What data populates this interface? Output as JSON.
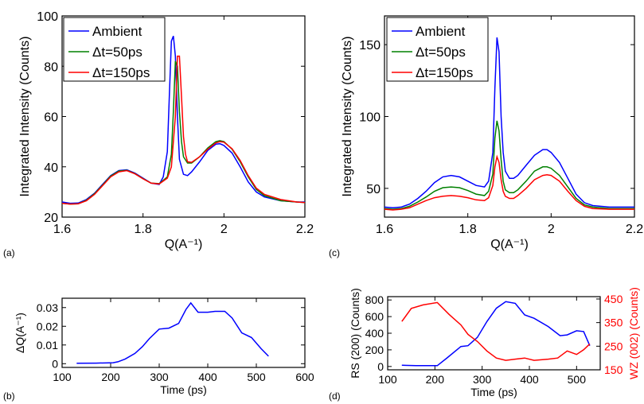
{
  "chart_data": [
    {
      "panel": "(a)",
      "type": "line",
      "xlabel": "Q(A⁻¹)",
      "ylabel": "Integrated Intensity (Counts)",
      "xlim": [
        1.6,
        2.2
      ],
      "ylim": [
        20,
        100
      ],
      "xticks": [
        "1.6",
        "1.8",
        "2",
        "2.2"
      ],
      "yticks": [
        "20",
        "40",
        "60",
        "80",
        "100"
      ],
      "legend_position": "top-left",
      "series": [
        {
          "name": "Ambient",
          "color": "#0000ff",
          "x": [
            1.6,
            1.62,
            1.64,
            1.66,
            1.68,
            1.7,
            1.72,
            1.74,
            1.76,
            1.78,
            1.8,
            1.82,
            1.84,
            1.85,
            1.86,
            1.865,
            1.87,
            1.875,
            1.88,
            1.885,
            1.89,
            1.9,
            1.91,
            1.92,
            1.94,
            1.96,
            1.98,
            1.99,
            2.0,
            2.02,
            2.04,
            2.06,
            2.08,
            2.1,
            2.14,
            2.18,
            2.2
          ],
          "y": [
            26,
            25.5,
            25.6,
            27,
            29.5,
            33,
            36.5,
            38.5,
            38.8,
            37.5,
            35.5,
            33.5,
            33,
            36,
            46,
            68,
            90,
            92,
            84,
            60,
            43,
            37,
            36.5,
            38,
            42,
            46.5,
            49,
            49.2,
            48.5,
            45.5,
            40,
            34,
            30,
            28,
            26.5,
            26,
            26
          ]
        },
        {
          "name": "Δt=50ps",
          "color": "#008000",
          "x": [
            1.6,
            1.62,
            1.64,
            1.66,
            1.68,
            1.7,
            1.72,
            1.74,
            1.76,
            1.78,
            1.8,
            1.82,
            1.84,
            1.86,
            1.87,
            1.875,
            1.88,
            1.885,
            1.89,
            1.895,
            1.9,
            1.91,
            1.92,
            1.94,
            1.96,
            1.98,
            1.99,
            2.0,
            2.02,
            2.04,
            2.06,
            2.08,
            2.1,
            2.14,
            2.18,
            2.2
          ],
          "y": [
            25.5,
            25.2,
            25.3,
            26.7,
            29.3,
            32.7,
            36.3,
            38.3,
            38.6,
            37.3,
            35.3,
            33.5,
            33.3,
            36,
            45,
            62,
            82,
            80,
            62,
            50,
            44,
            41.5,
            41.5,
            44,
            47.5,
            50,
            50.4,
            50,
            47,
            42,
            36,
            31,
            28.5,
            26.5,
            26,
            25.8
          ]
        },
        {
          "name": "Δt=150ps",
          "color": "#ff0000",
          "x": [
            1.6,
            1.62,
            1.64,
            1.66,
            1.68,
            1.7,
            1.72,
            1.74,
            1.76,
            1.78,
            1.8,
            1.82,
            1.84,
            1.86,
            1.87,
            1.88,
            1.885,
            1.89,
            1.895,
            1.9,
            1.905,
            1.91,
            1.92,
            1.94,
            1.96,
            1.98,
            1.99,
            2.0,
            2.02,
            2.04,
            2.06,
            2.08,
            2.1,
            2.14,
            2.18,
            2.2
          ],
          "y": [
            25.5,
            25.2,
            25.3,
            26.5,
            29,
            32.5,
            36,
            38,
            38.5,
            37.2,
            35.2,
            33.5,
            33.2,
            35.5,
            40,
            60,
            84,
            84,
            68,
            52,
            45,
            42,
            41.8,
            44,
            47,
            49.5,
            50,
            49.8,
            47.2,
            42.5,
            36.5,
            31.5,
            29,
            27,
            26,
            25.8
          ]
        }
      ]
    },
    {
      "panel": "(c)",
      "type": "line",
      "xlabel": "Q(A⁻¹)",
      "ylabel": "Integrated Intensity (Counts)",
      "xlim": [
        1.6,
        2.2
      ],
      "ylim": [
        30,
        170
      ],
      "xticks": [
        "1.6",
        "1.8",
        "2",
        "2.2"
      ],
      "yticks": [
        "50",
        "100",
        "150"
      ],
      "legend_position": "top-left",
      "series": [
        {
          "name": "Ambient",
          "color": "#0000ff",
          "x": [
            1.6,
            1.62,
            1.64,
            1.66,
            1.68,
            1.7,
            1.72,
            1.74,
            1.76,
            1.78,
            1.8,
            1.82,
            1.84,
            1.85,
            1.86,
            1.865,
            1.87,
            1.875,
            1.88,
            1.885,
            1.89,
            1.9,
            1.91,
            1.92,
            1.94,
            1.96,
            1.98,
            1.99,
            2.0,
            2.02,
            2.04,
            2.06,
            2.08,
            2.1,
            2.14,
            2.18,
            2.2
          ],
          "y": [
            37,
            36.5,
            37,
            39,
            43,
            48,
            54,
            58,
            59,
            58,
            55,
            52,
            51,
            55,
            75,
            120,
            155,
            145,
            100,
            75,
            62,
            57,
            57,
            59,
            66,
            73,
            77,
            77,
            75,
            68,
            57,
            46,
            40,
            38,
            37,
            37,
            37
          ]
        },
        {
          "name": "Δt=50ps",
          "color": "#008000",
          "x": [
            1.6,
            1.62,
            1.64,
            1.66,
            1.68,
            1.7,
            1.72,
            1.74,
            1.76,
            1.78,
            1.8,
            1.82,
            1.84,
            1.85,
            1.86,
            1.865,
            1.87,
            1.875,
            1.88,
            1.885,
            1.89,
            1.9,
            1.91,
            1.92,
            1.94,
            1.96,
            1.98,
            1.99,
            2.0,
            2.02,
            2.04,
            2.06,
            2.08,
            2.1,
            2.14,
            2.18,
            2.2
          ],
          "y": [
            36,
            35.5,
            36,
            37.5,
            40.5,
            44,
            48,
            50.5,
            51,
            50.5,
            48.5,
            46,
            45,
            48,
            60,
            85,
            97,
            90,
            70,
            55,
            49,
            47,
            47,
            49,
            55,
            62,
            65,
            65,
            64,
            59,
            51,
            43,
            38.5,
            37,
            36,
            36,
            36
          ]
        },
        {
          "name": "Δt=150ps",
          "color": "#ff0000",
          "x": [
            1.6,
            1.62,
            1.64,
            1.66,
            1.68,
            1.7,
            1.72,
            1.74,
            1.76,
            1.78,
            1.8,
            1.82,
            1.84,
            1.85,
            1.86,
            1.865,
            1.87,
            1.875,
            1.88,
            1.885,
            1.89,
            1.9,
            1.91,
            1.92,
            1.94,
            1.96,
            1.98,
            1.99,
            2.0,
            2.02,
            2.04,
            2.06,
            2.08,
            2.1,
            2.14,
            2.18,
            2.2
          ],
          "y": [
            35.5,
            35,
            35.5,
            36.5,
            39,
            41.5,
            43.5,
            44.5,
            45,
            44.5,
            43.5,
            42,
            41.5,
            43.5,
            52,
            65,
            72,
            68,
            56,
            48,
            44.5,
            43,
            43,
            45,
            50,
            56,
            59,
            59.5,
            59,
            55,
            48,
            41.5,
            37.5,
            36,
            35.5,
            35.5,
            35.5
          ]
        }
      ]
    },
    {
      "panel": "(b)",
      "type": "line",
      "xlabel": "Time (ps)",
      "ylabel": "ΔQ(A⁻¹)",
      "xlim": [
        100,
        600
      ],
      "ylim": [
        -0.002,
        0.035
      ],
      "xticks": [
        "100",
        "200",
        "300",
        "400",
        "500",
        "600"
      ],
      "yticks": [
        "0",
        "0.01",
        "0.02",
        "0.03"
      ],
      "series": [
        {
          "name": "",
          "color": "#0000ff",
          "x": [
            130,
            170,
            205,
            215,
            230,
            250,
            265,
            280,
            300,
            320,
            340,
            355,
            365,
            380,
            400,
            415,
            435,
            450,
            470,
            490,
            510,
            525
          ],
          "y": [
            0.0002,
            0.0003,
            0.0005,
            0.001,
            0.0025,
            0.0055,
            0.009,
            0.0135,
            0.0185,
            0.019,
            0.0215,
            0.029,
            0.0325,
            0.0275,
            0.0275,
            0.028,
            0.028,
            0.0245,
            0.0165,
            0.014,
            0.008,
            0.004
          ]
        }
      ]
    },
    {
      "panel": "(d)",
      "type": "line",
      "xlabel": "Time (ps)",
      "ylabel": "RS (200) (Counts)",
      "ylabel_right": "WZ (002) (Counts)",
      "xlim": [
        100,
        550
      ],
      "ylim": [
        -40,
        840
      ],
      "ylim_right": [
        150,
        460
      ],
      "xticks": [
        "100",
        "200",
        "300",
        "400",
        "500"
      ],
      "yticks": [
        "0",
        "200",
        "400",
        "600",
        "800"
      ],
      "yticks_right": [
        "150",
        "250",
        "350",
        "450"
      ],
      "series": [
        {
          "name": "",
          "color": "#0000ff",
          "axis": "left",
          "x": [
            130,
            160,
            205,
            225,
            255,
            270,
            290,
            310,
            330,
            350,
            370,
            390,
            410,
            440,
            465,
            480,
            500,
            515,
            528
          ],
          "y": [
            15,
            10,
            10,
            100,
            240,
            250,
            350,
            540,
            700,
            780,
            760,
            620,
            580,
            480,
            370,
            380,
            430,
            420,
            250
          ]
        },
        {
          "name": "",
          "color": "#ff0000",
          "axis": "right",
          "x": [
            130,
            150,
            175,
            205,
            230,
            255,
            270,
            290,
            310,
            330,
            350,
            370,
            390,
            410,
            440,
            460,
            480,
            500,
            515,
            528
          ],
          "y": [
            355,
            410,
            425,
            435,
            385,
            340,
            300,
            270,
            230,
            200,
            190,
            195,
            200,
            190,
            195,
            200,
            230,
            215,
            235,
            260
          ]
        }
      ]
    }
  ],
  "panel_labels": {
    "a": "(a)",
    "b": "(b)",
    "c": "(c)",
    "d": "(d)"
  }
}
